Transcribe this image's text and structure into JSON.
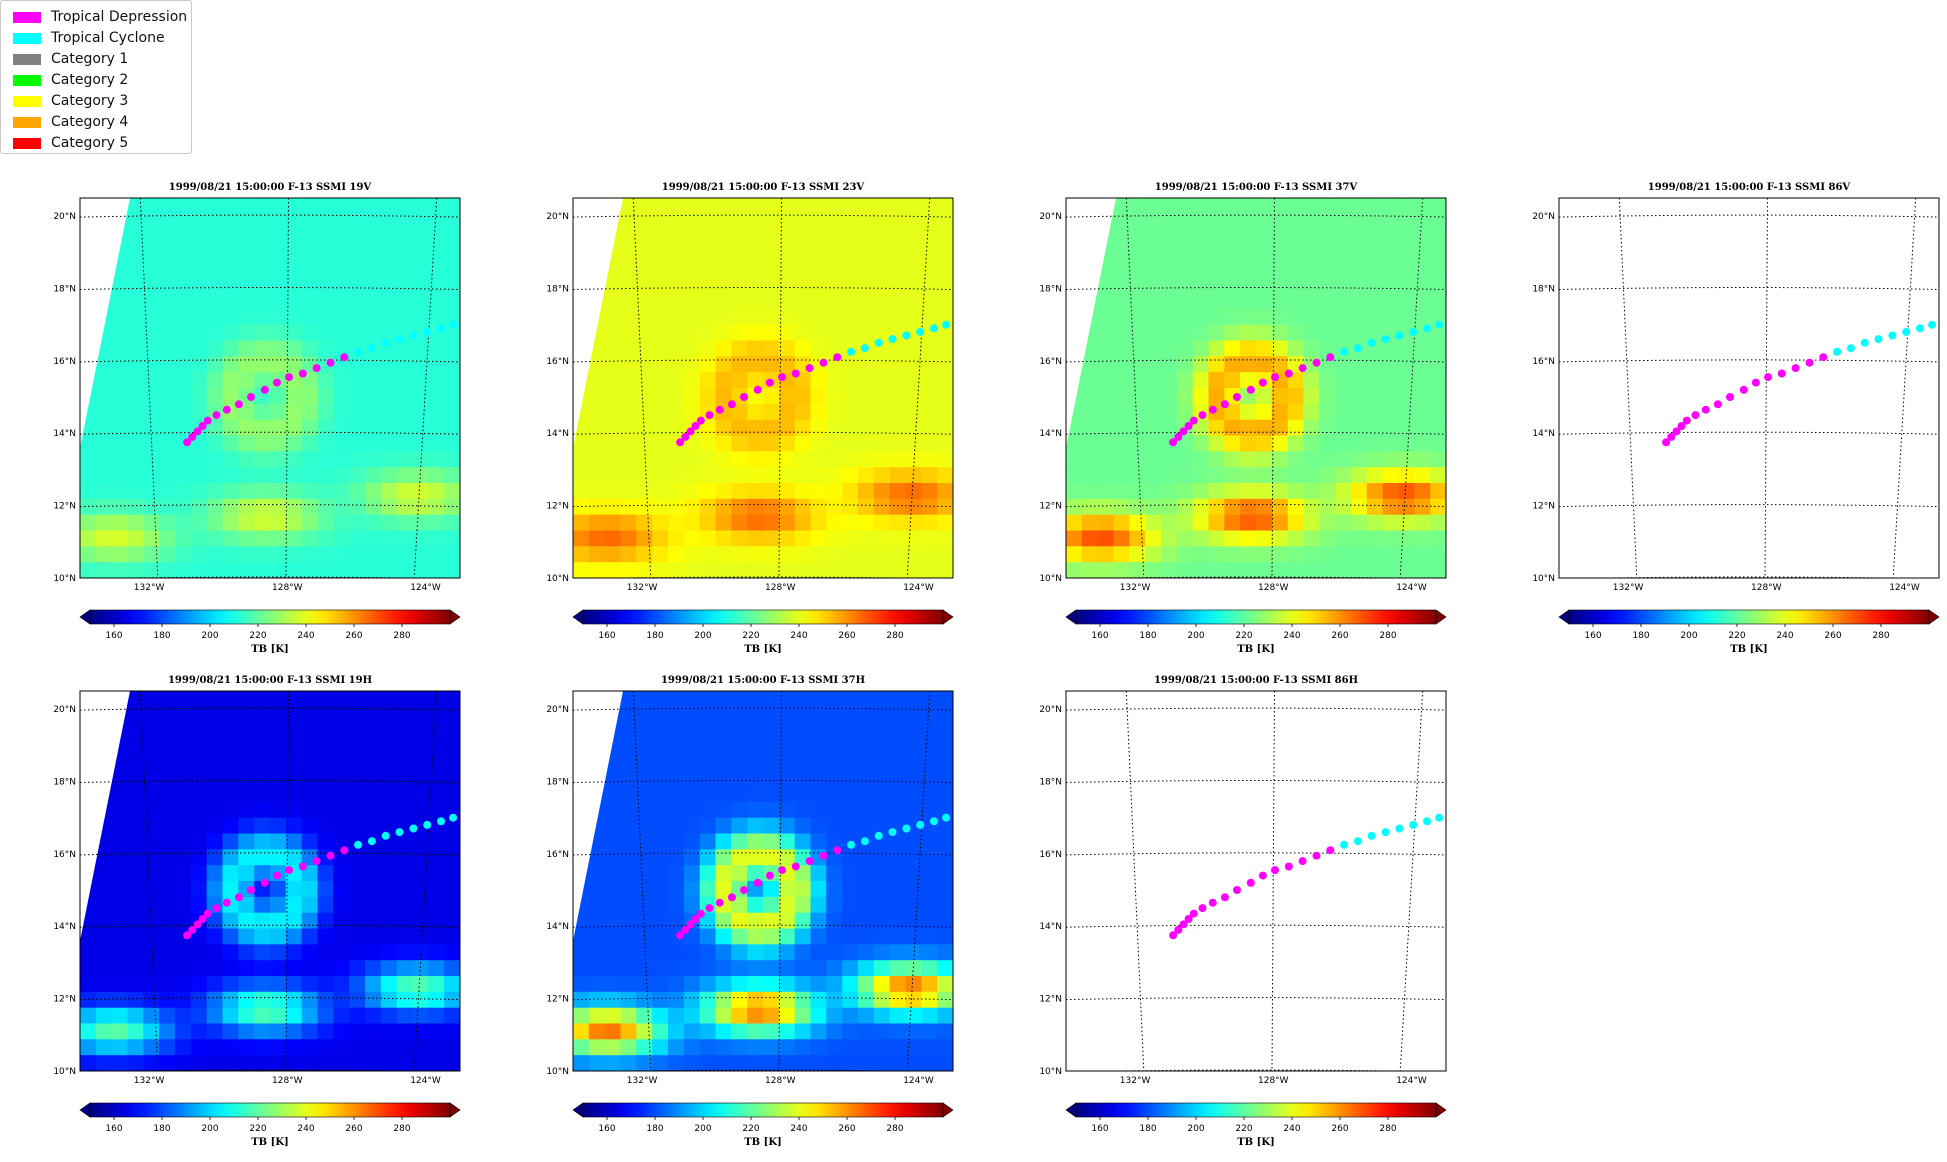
{
  "legend": {
    "items": [
      {
        "label": "Tropical Depression",
        "color": "#ff00ff"
      },
      {
        "label": "Tropical Cyclone",
        "color": "#00ffff"
      },
      {
        "label": "Category 1",
        "color": "#808080"
      },
      {
        "label": "Category 2",
        "color": "#00ff00"
      },
      {
        "label": "Category 3",
        "color": "#ffff00"
      },
      {
        "label": "Category 4",
        "color": "#ffa500"
      },
      {
        "label": "Category 5",
        "color": "#ff0000"
      }
    ]
  },
  "chart_data": {
    "type": "scatter",
    "map_extent": {
      "lon": [
        -134,
        -123
      ],
      "lat": [
        10,
        20.5
      ]
    },
    "lat_ticks": [
      "10°N",
      "12°N",
      "14°N",
      "16°N",
      "18°N",
      "20°N"
    ],
    "lon_ticks": [
      "132°W",
      "128°W",
      "124°W"
    ],
    "colorbar": {
      "label": "TB [K]",
      "ticks": [
        "160",
        "180",
        "200",
        "220",
        "240",
        "260",
        "280"
      ],
      "range": [
        150,
        300
      ],
      "colormap": "jet",
      "extend": "both"
    },
    "track": {
      "lon": [
        -130.9,
        -130.75,
        -130.6,
        -130.45,
        -130.3,
        -130.05,
        -129.75,
        -129.4,
        -129.05,
        -128.65,
        -128.3,
        -127.95,
        -127.55,
        -127.15,
        -126.75,
        -126.35,
        -125.95,
        -125.55,
        -125.15,
        -124.75,
        -124.35,
        -123.95,
        -123.55,
        -123.2,
        -122.9
      ],
      "lat": [
        13.75,
        13.9,
        14.05,
        14.2,
        14.35,
        14.5,
        14.65,
        14.8,
        15.0,
        15.2,
        15.4,
        15.55,
        15.65,
        15.8,
        15.95,
        16.1,
        16.25,
        16.35,
        16.5,
        16.6,
        16.7,
        16.8,
        16.9,
        17.0,
        17.05
      ],
      "category": [
        "Tropical Depression",
        "Tropical Depression",
        "Tropical Depression",
        "Tropical Depression",
        "Tropical Depression",
        "Tropical Depression",
        "Tropical Depression",
        "Tropical Depression",
        "Tropical Depression",
        "Tropical Depression",
        "Tropical Depression",
        "Tropical Depression",
        "Tropical Depression",
        "Tropical Depression",
        "Tropical Depression",
        "Tropical Depression",
        "Tropical Cyclone",
        "Tropical Cyclone",
        "Tropical Cyclone",
        "Tropical Cyclone",
        "Tropical Cyclone",
        "Tropical Cyclone",
        "Tropical Cyclone",
        "Tropical Cyclone",
        "Tropical Cyclone"
      ]
    },
    "panels": [
      {
        "title": "1999/08/21 15:00:00  F-13 SSMI 19V",
        "field": "v19",
        "background": "#00bff0"
      },
      {
        "title": "1999/08/21 15:00:00  F-13 SSMI 23V",
        "field": "v23",
        "background": "#eaf000"
      },
      {
        "title": "1999/08/21 15:00:00  F-13 SSMI 37V",
        "field": "v37",
        "background": "#50f0a0"
      },
      {
        "title": "1999/08/21 15:00:00  F-13 SSMI 86V",
        "field": "none",
        "background": "#ffffff"
      },
      {
        "title": "1999/08/21 15:00:00  F-13 SSMI 19H",
        "field": "h19",
        "background": "#0000a0"
      },
      {
        "title": "1999/08/21 15:00:00  F-13 SSMI 37H",
        "field": "h37",
        "background": "#0010c0"
      },
      {
        "title": "1999/08/21 15:00:00  F-13 SSMI 86H",
        "field": "none",
        "background": "#ffffff"
      }
    ]
  }
}
